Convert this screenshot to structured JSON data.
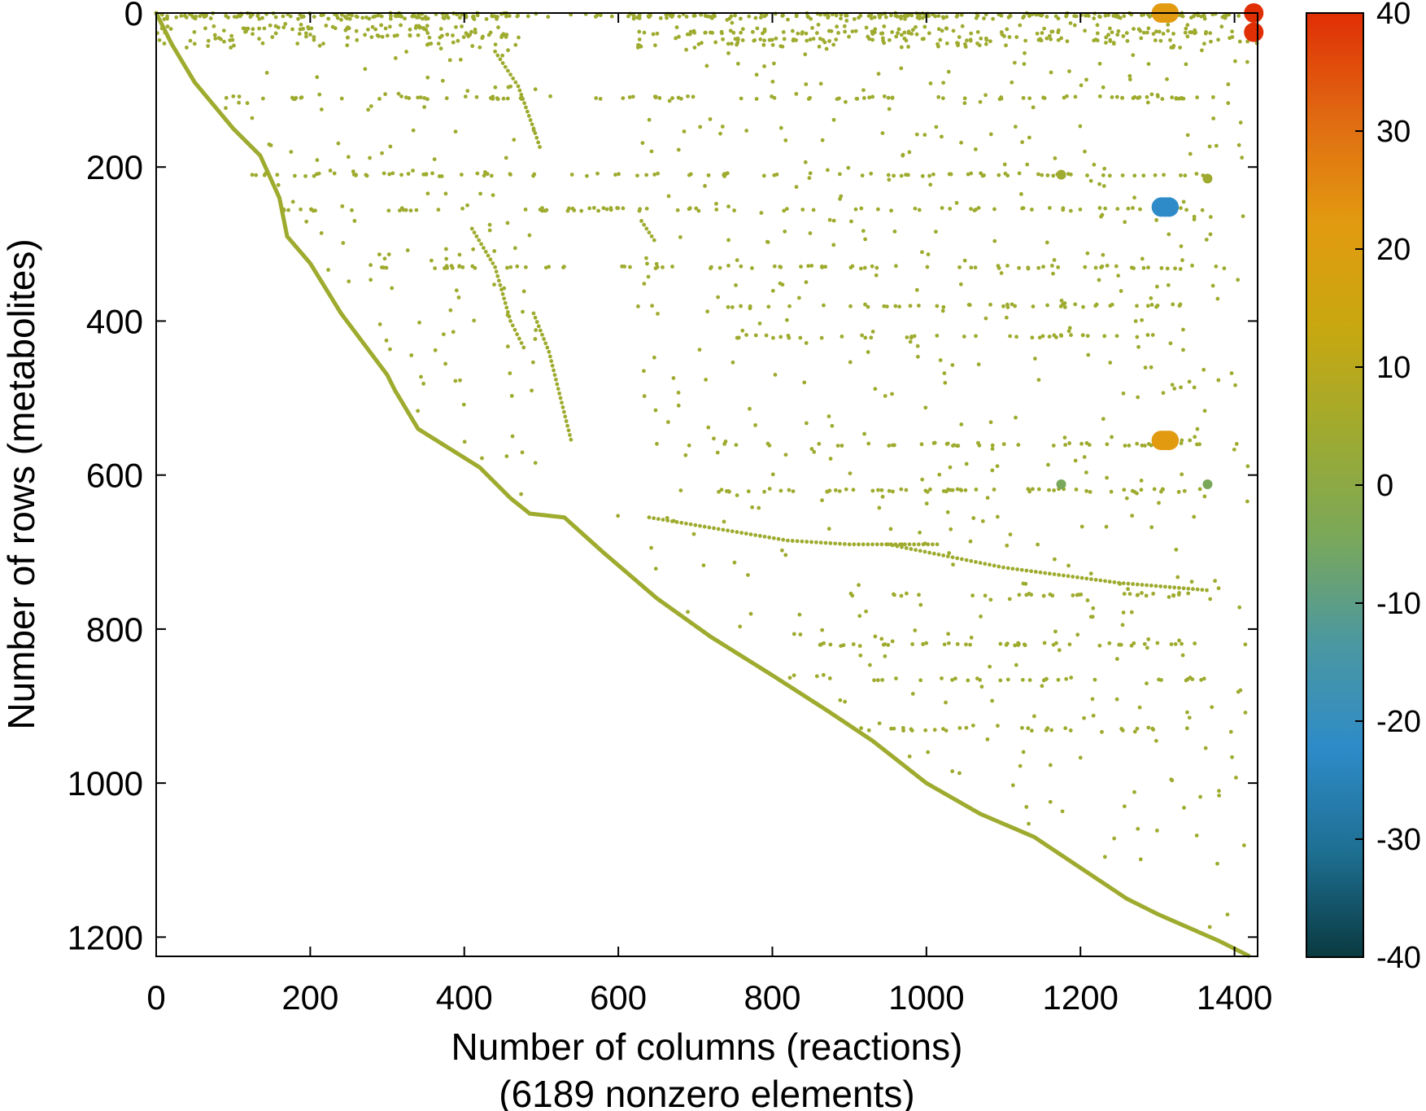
{
  "chart_data": {
    "type": "scatter",
    "subtype": "sparsity-pattern",
    "xlabel": "Number of columns (reactions)",
    "xlabel_line2": "(6189 nonzero elements)",
    "ylabel": "Number of rows (metabolites)",
    "xlim": [
      0,
      1430
    ],
    "ylim": [
      1225,
      0
    ],
    "x_ticks": [
      0,
      200,
      400,
      600,
      800,
      1000,
      1200,
      1400
    ],
    "y_ticks": [
      0,
      200,
      400,
      600,
      800,
      1000,
      1200
    ],
    "grid": false,
    "colorbar": {
      "ticks": [
        40,
        30,
        20,
        10,
        0,
        -10,
        -20,
        -30,
        -40
      ],
      "range": [
        -40,
        40
      ],
      "colors": [
        "#0a3a40",
        "#1e6f92",
        "#2e8bc8",
        "#4b98a0",
        "#7aa85a",
        "#9faa30",
        "#c8a810",
        "#e29a10",
        "#e06a12",
        "#e02e05"
      ]
    },
    "diagonal_points": [
      [
        0,
        0
      ],
      [
        20,
        40
      ],
      [
        50,
        90
      ],
      [
        100,
        150
      ],
      [
        135,
        185
      ],
      [
        160,
        240
      ],
      [
        170,
        290
      ],
      [
        200,
        325
      ],
      [
        240,
        390
      ],
      [
        300,
        470
      ],
      [
        310,
        490
      ],
      [
        340,
        540
      ],
      [
        380,
        565
      ],
      [
        420,
        590
      ],
      [
        460,
        630
      ],
      [
        485,
        650
      ],
      [
        530,
        655
      ],
      [
        580,
        700
      ],
      [
        650,
        760
      ],
      [
        720,
        810
      ],
      [
        800,
        860
      ],
      [
        870,
        905
      ],
      [
        930,
        945
      ],
      [
        1000,
        1000
      ],
      [
        1070,
        1040
      ],
      [
        1140,
        1070
      ],
      [
        1200,
        1110
      ],
      [
        1260,
        1150
      ],
      [
        1300,
        1170
      ],
      [
        1380,
        1205
      ],
      [
        1420,
        1225
      ]
    ],
    "secondary_bands": [
      [
        [
          410,
          280
        ],
        [
          440,
          330
        ],
        [
          460,
          400
        ],
        [
          480,
          440
        ]
      ],
      [
        [
          440,
          50
        ],
        [
          470,
          95
        ],
        [
          490,
          150
        ],
        [
          500,
          180
        ]
      ],
      [
        [
          490,
          390
        ],
        [
          510,
          440
        ],
        [
          525,
          500
        ],
        [
          540,
          560
        ]
      ],
      [
        [
          630,
          270
        ],
        [
          650,
          300
        ]
      ],
      [
        [
          640,
          655
        ],
        [
          820,
          685
        ],
        [
          900,
          690
        ],
        [
          1020,
          690
        ]
      ],
      [
        [
          950,
          690
        ],
        [
          1100,
          720
        ],
        [
          1250,
          740
        ],
        [
          1370,
          750
        ]
      ]
    ],
    "horizontal_rows": [
      {
        "row": 3,
        "x_start": 0,
        "x_end": 1430
      },
      {
        "row": 20,
        "x_start": 110,
        "x_end": 400
      },
      {
        "row": 25,
        "x_start": 620,
        "x_end": 1370
      },
      {
        "row": 30,
        "x_start": 220,
        "x_end": 470
      },
      {
        "row": 35,
        "x_start": 750,
        "x_end": 1200
      },
      {
        "row": 110,
        "x_start": 80,
        "x_end": 1380
      },
      {
        "row": 210,
        "x_start": 120,
        "x_end": 1400
      },
      {
        "row": 255,
        "x_start": 150,
        "x_end": 1400
      },
      {
        "row": 330,
        "x_start": 280,
        "x_end": 1390
      },
      {
        "row": 380,
        "x_start": 700,
        "x_end": 1330
      },
      {
        "row": 420,
        "x_start": 730,
        "x_end": 1300
      },
      {
        "row": 560,
        "x_start": 690,
        "x_end": 1370
      },
      {
        "row": 620,
        "x_start": 720,
        "x_end": 1360
      },
      {
        "row": 755,
        "x_start": 900,
        "x_end": 1340
      },
      {
        "row": 820,
        "x_start": 860,
        "x_end": 1360
      },
      {
        "row": 865,
        "x_start": 920,
        "x_end": 1370
      },
      {
        "row": 930,
        "x_start": 900,
        "x_end": 1340
      }
    ],
    "highlighted_entries": [
      {
        "x": 1305,
        "y": 0,
        "value": 22
      },
      {
        "x": 1310,
        "y": 0,
        "value": 22
      },
      {
        "x": 1315,
        "y": 0,
        "value": 22
      },
      {
        "x": 1425,
        "y": 0,
        "value": 38
      },
      {
        "x": 1425,
        "y": 25,
        "value": 38
      },
      {
        "x": 1305,
        "y": 252,
        "value": -22
      },
      {
        "x": 1310,
        "y": 252,
        "value": -22
      },
      {
        "x": 1315,
        "y": 252,
        "value": -22
      },
      {
        "x": 1305,
        "y": 555,
        "value": 22
      },
      {
        "x": 1310,
        "y": 555,
        "value": 22
      },
      {
        "x": 1315,
        "y": 555,
        "value": 22
      },
      {
        "x": 1365,
        "y": 215,
        "value": 8
      },
      {
        "x": 1175,
        "y": 210,
        "value": 8
      },
      {
        "x": 1175,
        "y": 612,
        "value": -6
      },
      {
        "x": 1365,
        "y": 612,
        "value": -6
      }
    ],
    "default_point_color": "#9eab2e"
  }
}
